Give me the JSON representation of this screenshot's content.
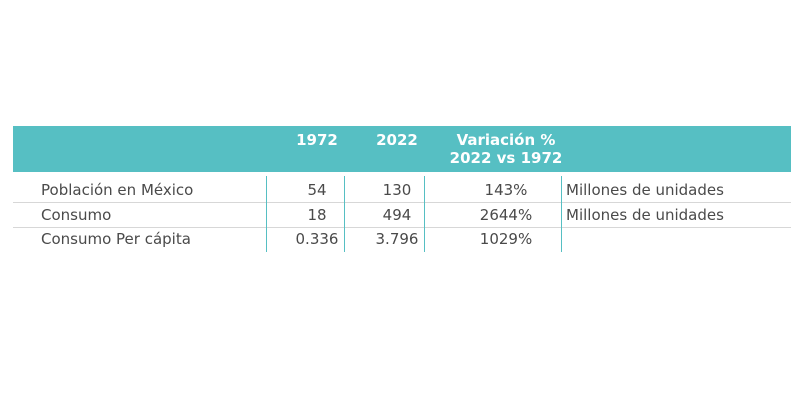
{
  "table": {
    "headers": {
      "col_1972": "1972",
      "col_2022": "2022",
      "variation_line1": "Variación %",
      "variation_line2": "2022 vs 1972"
    },
    "rows": [
      {
        "label": "Población en México",
        "v1972": "54",
        "v2022": "130",
        "variation": "143%",
        "unit": "Millones de unidades"
      },
      {
        "label": "Consumo",
        "v1972": "18",
        "v2022": "494",
        "variation": "2644%",
        "unit": "Millones de unidades"
      },
      {
        "label": "Consumo Per cápita",
        "v1972": "0.336",
        "v2022": "3.796",
        "variation": "1029%",
        "unit": ""
      }
    ],
    "colors": {
      "header_bg": "#56bfc3",
      "header_text": "#ffffff",
      "divider": "#56bfc3",
      "text": "#4a4a4a"
    }
  }
}
